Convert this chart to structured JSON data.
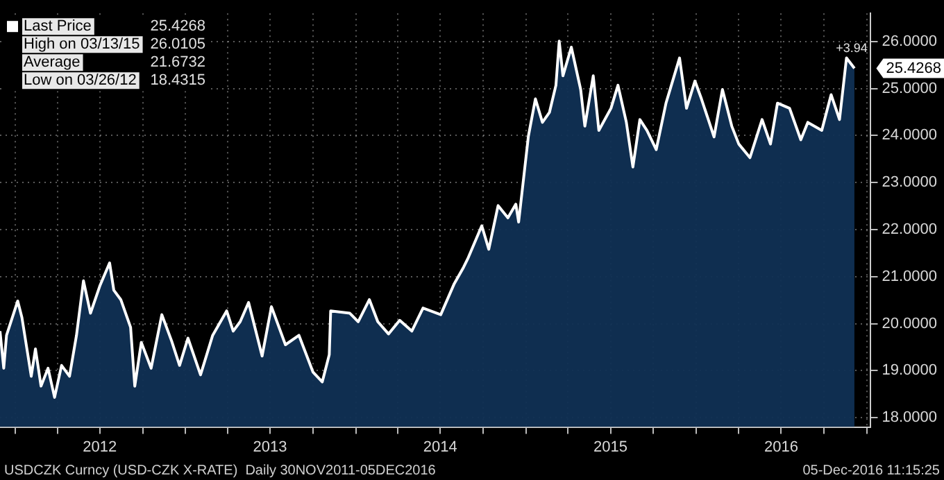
{
  "chart_data": {
    "type": "area",
    "legend": "top left",
    "grid": true,
    "marker": "none",
    "line_style": "solid",
    "xlim": [
      "2011-11-30",
      "2017-01-09"
    ],
    "xticks": [
      {
        "value": "2012-01-01",
        "label": null
      },
      {
        "value": "2012-04-01",
        "label": null
      },
      {
        "value": "2012-07-01",
        "label": "2012"
      },
      {
        "value": "2012-10-01",
        "label": null
      },
      {
        "value": "2013-01-01",
        "label": null
      },
      {
        "value": "2013-04-01",
        "label": null
      },
      {
        "value": "2013-07-01",
        "label": "2013"
      },
      {
        "value": "2013-10-01",
        "label": null
      },
      {
        "value": "2014-01-01",
        "label": null
      },
      {
        "value": "2014-04-01",
        "label": null
      },
      {
        "value": "2014-07-01",
        "label": "2014"
      },
      {
        "value": "2014-10-01",
        "label": null
      },
      {
        "value": "2015-01-01",
        "label": null
      },
      {
        "value": "2015-04-01",
        "label": null
      },
      {
        "value": "2015-07-01",
        "label": "2015"
      },
      {
        "value": "2015-10-01",
        "label": null
      },
      {
        "value": "2016-01-01",
        "label": null
      },
      {
        "value": "2016-04-01",
        "label": null
      },
      {
        "value": "2016-07-01",
        "label": "2016"
      },
      {
        "value": "2016-10-01",
        "label": null
      },
      {
        "value": "2017-01-01",
        "label": null
      }
    ],
    "ylim": [
      17.8,
      26.6
    ],
    "yticks": [
      {
        "value": 18,
        "label": "18.0000"
      },
      {
        "value": 19,
        "label": "19.0000"
      },
      {
        "value": 20,
        "label": "20.0000"
      },
      {
        "value": 21,
        "label": "21.0000"
      },
      {
        "value": 22,
        "label": "22.0000"
      },
      {
        "value": 23,
        "label": "23.0000"
      },
      {
        "value": 24,
        "label": "24.0000"
      },
      {
        "value": 25,
        "label": "25.0000"
      },
      {
        "value": 26,
        "label": "26.0000"
      }
    ],
    "x": [
      "2011-11-30",
      "2011-12-08",
      "2011-12-14",
      "2012-01-07",
      "2012-01-16",
      "2012-02-05",
      "2012-02-14",
      "2012-02-26",
      "2012-03-12",
      "2012-03-26",
      "2012-04-10",
      "2012-04-27",
      "2012-05-12",
      "2012-05-27",
      "2012-06-11",
      "2012-07-01",
      "2012-07-22",
      "2012-07-31",
      "2012-08-15",
      "2012-09-05",
      "2012-09-14",
      "2012-09-28",
      "2012-10-19",
      "2012-11-11",
      "2012-12-02",
      "2012-12-19",
      "2013-01-06",
      "2013-02-02",
      "2013-02-28",
      "2013-03-30",
      "2013-04-13",
      "2013-04-28",
      "2013-05-16",
      "2013-06-14",
      "2013-07-04",
      "2013-08-03",
      "2013-09-01",
      "2013-10-01",
      "2013-10-21",
      "2013-11-05",
      "2013-11-08",
      "2013-12-19",
      "2014-01-06",
      "2014-01-30",
      "2014-02-17",
      "2014-03-12",
      "2014-04-05",
      "2014-05-01",
      "2014-05-25",
      "2014-07-02",
      "2014-07-31",
      "2014-08-20",
      "2014-08-29",
      "2014-09-28",
      "2014-10-13",
      "2014-11-02",
      "2014-11-23",
      "2014-12-10",
      "2014-12-16",
      "2015-01-06",
      "2015-01-21",
      "2015-02-05",
      "2015-02-20",
      "2015-03-06",
      "2015-03-13",
      "2015-03-21",
      "2015-04-08",
      "2015-04-28",
      "2015-05-07",
      "2015-05-25",
      "2015-06-06",
      "2015-07-02",
      "2015-07-17",
      "2015-08-04",
      "2015-08-18",
      "2015-09-02",
      "2015-09-17",
      "2015-10-07",
      "2015-10-28",
      "2015-11-26",
      "2015-12-11",
      "2015-12-29",
      "2016-01-12",
      "2016-02-08",
      "2016-02-26",
      "2016-03-17",
      "2016-04-01",
      "2016-04-25",
      "2016-05-21",
      "2016-06-08",
      "2016-06-23",
      "2016-07-19",
      "2016-08-12",
      "2016-08-27",
      "2016-09-26",
      "2016-10-16",
      "2016-11-03",
      "2016-11-18",
      "2016-12-05"
    ],
    "series": [
      {
        "name": "Last Price",
        "color": "#ffffff",
        "values": [
          19.84,
          19.05,
          19.75,
          20.48,
          20.13,
          18.88,
          19.46,
          18.67,
          19.05,
          18.43,
          19.11,
          18.88,
          19.75,
          20.91,
          20.22,
          20.8,
          21.29,
          20.71,
          20.51,
          19.92,
          18.67,
          19.6,
          19.05,
          20.19,
          19.63,
          19.11,
          19.69,
          18.91,
          19.75,
          20.27,
          19.84,
          20.04,
          20.45,
          19.31,
          20.36,
          19.55,
          19.75,
          18.97,
          18.76,
          19.34,
          20.27,
          20.22,
          20.04,
          20.51,
          20.04,
          19.78,
          20.07,
          19.84,
          20.33,
          20.19,
          20.85,
          21.2,
          21.38,
          22.08,
          21.58,
          22.51,
          22.25,
          22.54,
          22.16,
          23.99,
          24.78,
          24.28,
          24.49,
          25.07,
          26.01,
          25.27,
          25.88,
          24.98,
          24.2,
          25.27,
          24.11,
          24.58,
          25.07,
          24.28,
          23.33,
          24.34,
          24.11,
          23.7,
          24.69,
          25.65,
          24.58,
          25.16,
          24.78,
          23.97,
          24.98,
          24.2,
          23.82,
          23.53,
          24.34,
          23.82,
          24.69,
          24.58,
          23.91,
          24.28,
          24.11,
          24.87,
          24.34,
          25.65,
          25.43
        ]
      }
    ],
    "annotations": [
      "25.4268",
      "High on 03/13/15 26.0105",
      "Average 21.6732",
      "Low on 03/26/12 18.4315",
      {
        "text": "+3.94",
        "x": "2016-12-05",
        "y": 25.43
      },
      "25.4268",
      "USDCZK Curncy (USD-CZK X-RATE)  Daily 30NOV2011-05DEC2016",
      "05-Dec-2016 11:15:25"
    ]
  }
}
